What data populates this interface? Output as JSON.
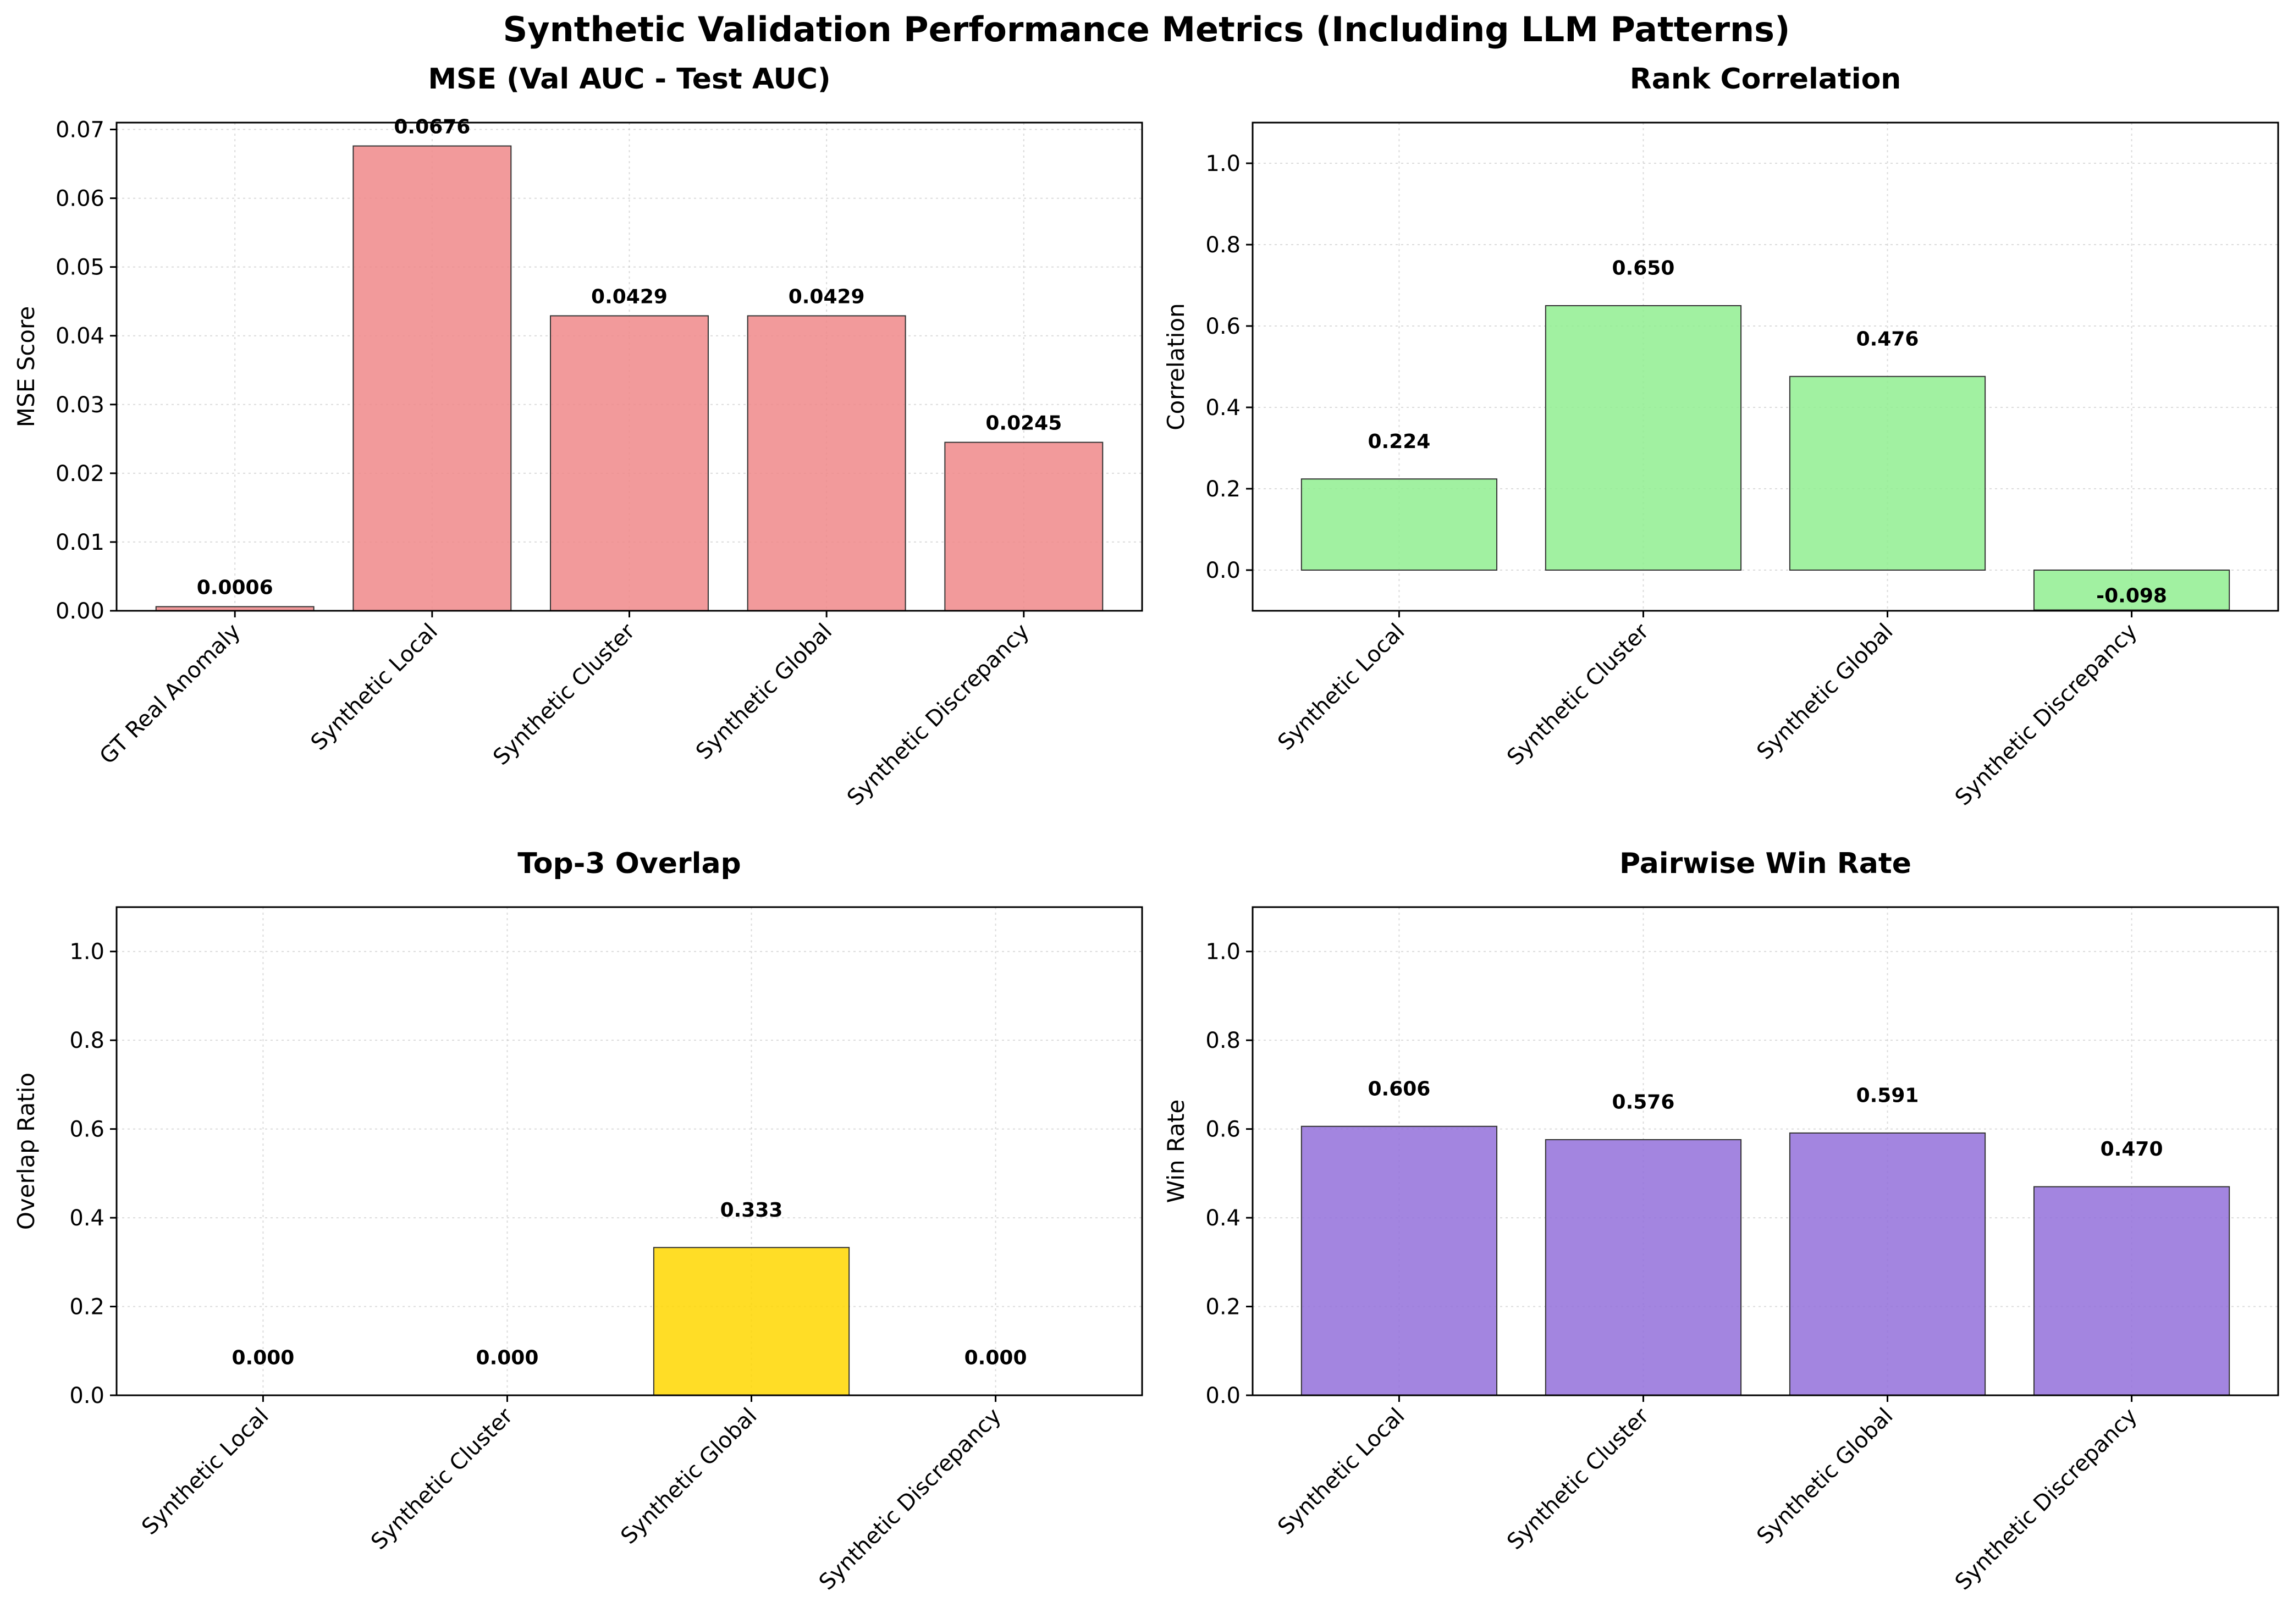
{
  "figure_title": "Synthetic Validation Performance Metrics (Including LLM Patterns)",
  "chart_data": [
    {
      "type": "bar",
      "title": "MSE (Val AUC - Test AUC)",
      "xlabel": "",
      "ylabel": "MSE Score",
      "categories": [
        "GT Real Anomaly",
        "Synthetic Local",
        "Synthetic Cluster",
        "Synthetic Global",
        "Synthetic Discrepancy"
      ],
      "values": [
        0.0006,
        0.0676,
        0.0429,
        0.0429,
        0.0245
      ],
      "value_labels": [
        "0.0006",
        "0.0676",
        "0.0429",
        "0.0429",
        "0.0245"
      ],
      "ylim": [
        0,
        0.071
      ],
      "yticks": [
        0.0,
        0.01,
        0.02,
        0.03,
        0.04,
        0.05,
        0.06,
        0.07
      ],
      "ytick_labels": [
        "0.00",
        "0.01",
        "0.02",
        "0.03",
        "0.04",
        "0.05",
        "0.06",
        "0.07"
      ],
      "color": "#f0888a",
      "grid": true
    },
    {
      "type": "bar",
      "title": "Rank Correlation",
      "xlabel": "",
      "ylabel": "Correlation",
      "categories": [
        "Synthetic Local",
        "Synthetic Cluster",
        "Synthetic Global",
        "Synthetic Discrepancy"
      ],
      "values": [
        0.224,
        0.65,
        0.476,
        -0.098
      ],
      "value_labels": [
        "0.224",
        "0.650",
        "0.476",
        "-0.098"
      ],
      "ylim": [
        -0.1,
        1.1
      ],
      "yticks": [
        0.0,
        0.2,
        0.4,
        0.6,
        0.8,
        1.0
      ],
      "ytick_labels": [
        "0.0",
        "0.2",
        "0.4",
        "0.6",
        "0.8",
        "1.0"
      ],
      "color": "#90ee90",
      "grid": true
    },
    {
      "type": "bar",
      "title": "Top-3 Overlap",
      "xlabel": "",
      "ylabel": "Overlap Ratio",
      "categories": [
        "Synthetic Local",
        "Synthetic Cluster",
        "Synthetic Global",
        "Synthetic Discrepancy"
      ],
      "values": [
        0.0,
        0.0,
        0.333,
        0.0
      ],
      "value_labels": [
        "0.000",
        "0.000",
        "0.333",
        "0.000"
      ],
      "ylim": [
        0,
        1.1
      ],
      "yticks": [
        0.0,
        0.2,
        0.4,
        0.6,
        0.8,
        1.0
      ],
      "ytick_labels": [
        "0.0",
        "0.2",
        "0.4",
        "0.6",
        "0.8",
        "1.0"
      ],
      "color": "#ffd700",
      "grid": true
    },
    {
      "type": "bar",
      "title": "Pairwise Win Rate",
      "xlabel": "",
      "ylabel": "Win Rate",
      "categories": [
        "Synthetic Local",
        "Synthetic Cluster",
        "Synthetic Global",
        "Synthetic Discrepancy"
      ],
      "values": [
        0.606,
        0.576,
        0.591,
        0.47
      ],
      "value_labels": [
        "0.606",
        "0.576",
        "0.591",
        "0.470"
      ],
      "ylim": [
        0,
        1.1
      ],
      "yticks": [
        0.0,
        0.2,
        0.4,
        0.6,
        0.8,
        1.0
      ],
      "ytick_labels": [
        "0.0",
        "0.2",
        "0.4",
        "0.6",
        "0.8",
        "1.0"
      ],
      "color": "#9370db",
      "grid": true
    }
  ]
}
